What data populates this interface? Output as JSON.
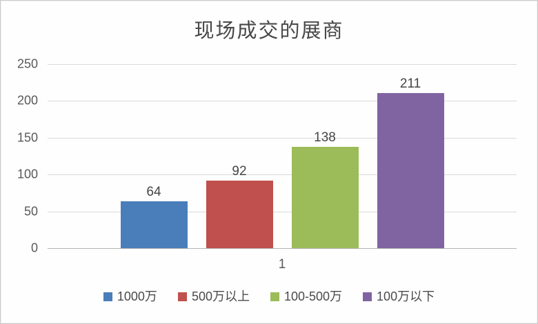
{
  "chart_data": {
    "type": "bar",
    "title": "现场成交的展商",
    "categories": [
      "1"
    ],
    "series": [
      {
        "name": "1000万",
        "values": [
          64
        ],
        "color": "#4a7ebb"
      },
      {
        "name": "500万以上",
        "values": [
          92
        ],
        "color": "#c0504d"
      },
      {
        "name": "100-500万",
        "values": [
          138
        ],
        "color": "#9cbc59"
      },
      {
        "name": "100万以下",
        "values": [
          211
        ],
        "color": "#8064a2"
      }
    ],
    "xlabel": "",
    "ylabel": "",
    "ylim": [
      0,
      250
    ],
    "yticks": [
      0,
      50,
      100,
      150,
      200,
      250
    ],
    "grid": true,
    "legend_position": "bottom",
    "colors": {
      "gridline": "#d9d9d9",
      "axis_line": "#b3b3b3",
      "tick_text": "#595959",
      "data_label_text": "#444444",
      "title_text": "#484848"
    }
  }
}
